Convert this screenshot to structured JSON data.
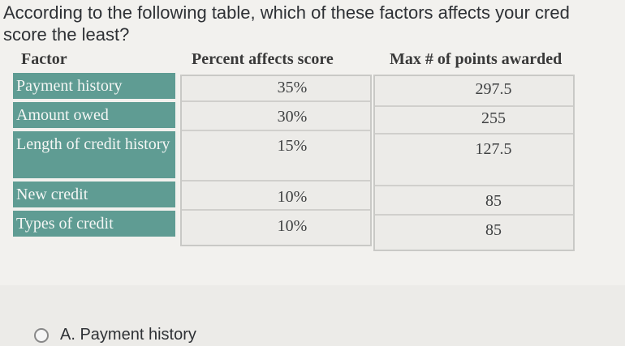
{
  "question": {
    "line1": "According to the following table, which of these factors affects your cred",
    "line2": "score the least?"
  },
  "table": {
    "headers": [
      "Factor",
      "Percent affects score",
      "Max # of points awarded"
    ],
    "rows": [
      {
        "factor": "Payment history",
        "percent": "35%",
        "points": "297.5"
      },
      {
        "factor": "Amount owed",
        "percent": "30%",
        "points": "255"
      },
      {
        "factor": "Length of credit history",
        "percent": "15%",
        "points": "127.5"
      },
      {
        "factor": "New credit",
        "percent": "10%",
        "points": "85"
      },
      {
        "factor": "Types of credit",
        "percent": "10%",
        "points": "85"
      }
    ]
  },
  "options": [
    {
      "letter": "A.",
      "label": "Payment history"
    }
  ]
}
